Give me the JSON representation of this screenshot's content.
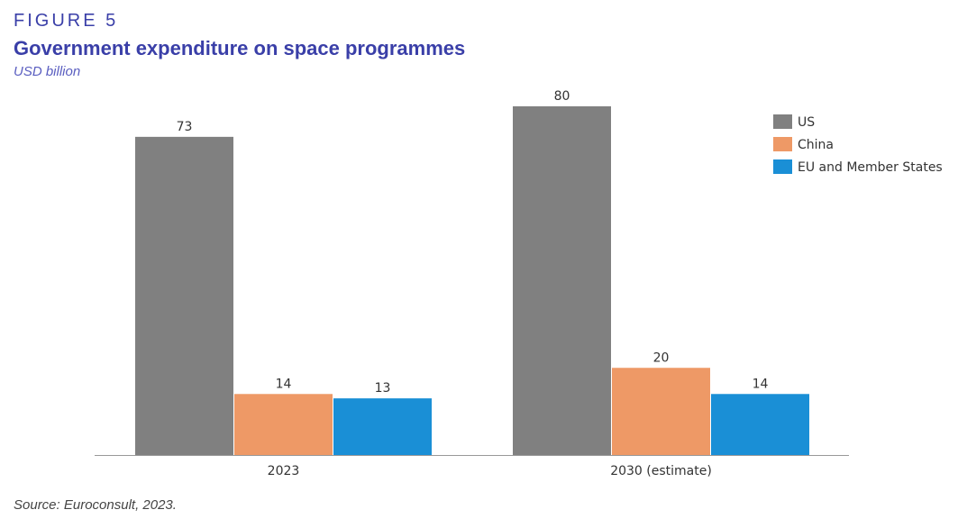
{
  "header": {
    "figure_label": "FIGURE 5",
    "title": "Government expenditure on space programmes",
    "subtitle": "USD billion"
  },
  "footer": {
    "source": "Source: Euroconsult, 2023."
  },
  "colors": {
    "US": "#808080",
    "China": "#ee9966",
    "EU": "#1a8fd6",
    "baseline": "#999999"
  },
  "chart_data": {
    "type": "bar",
    "categories": [
      "2023",
      "2030 (estimate)"
    ],
    "series": [
      {
        "name": "US",
        "values": [
          73,
          80
        ]
      },
      {
        "name": "China",
        "values": [
          14,
          20
        ]
      },
      {
        "name": "EU and Member States",
        "values": [
          13,
          14
        ]
      }
    ],
    "legend_position": "top-right",
    "grid": false,
    "ylim": [
      0,
      80
    ]
  }
}
